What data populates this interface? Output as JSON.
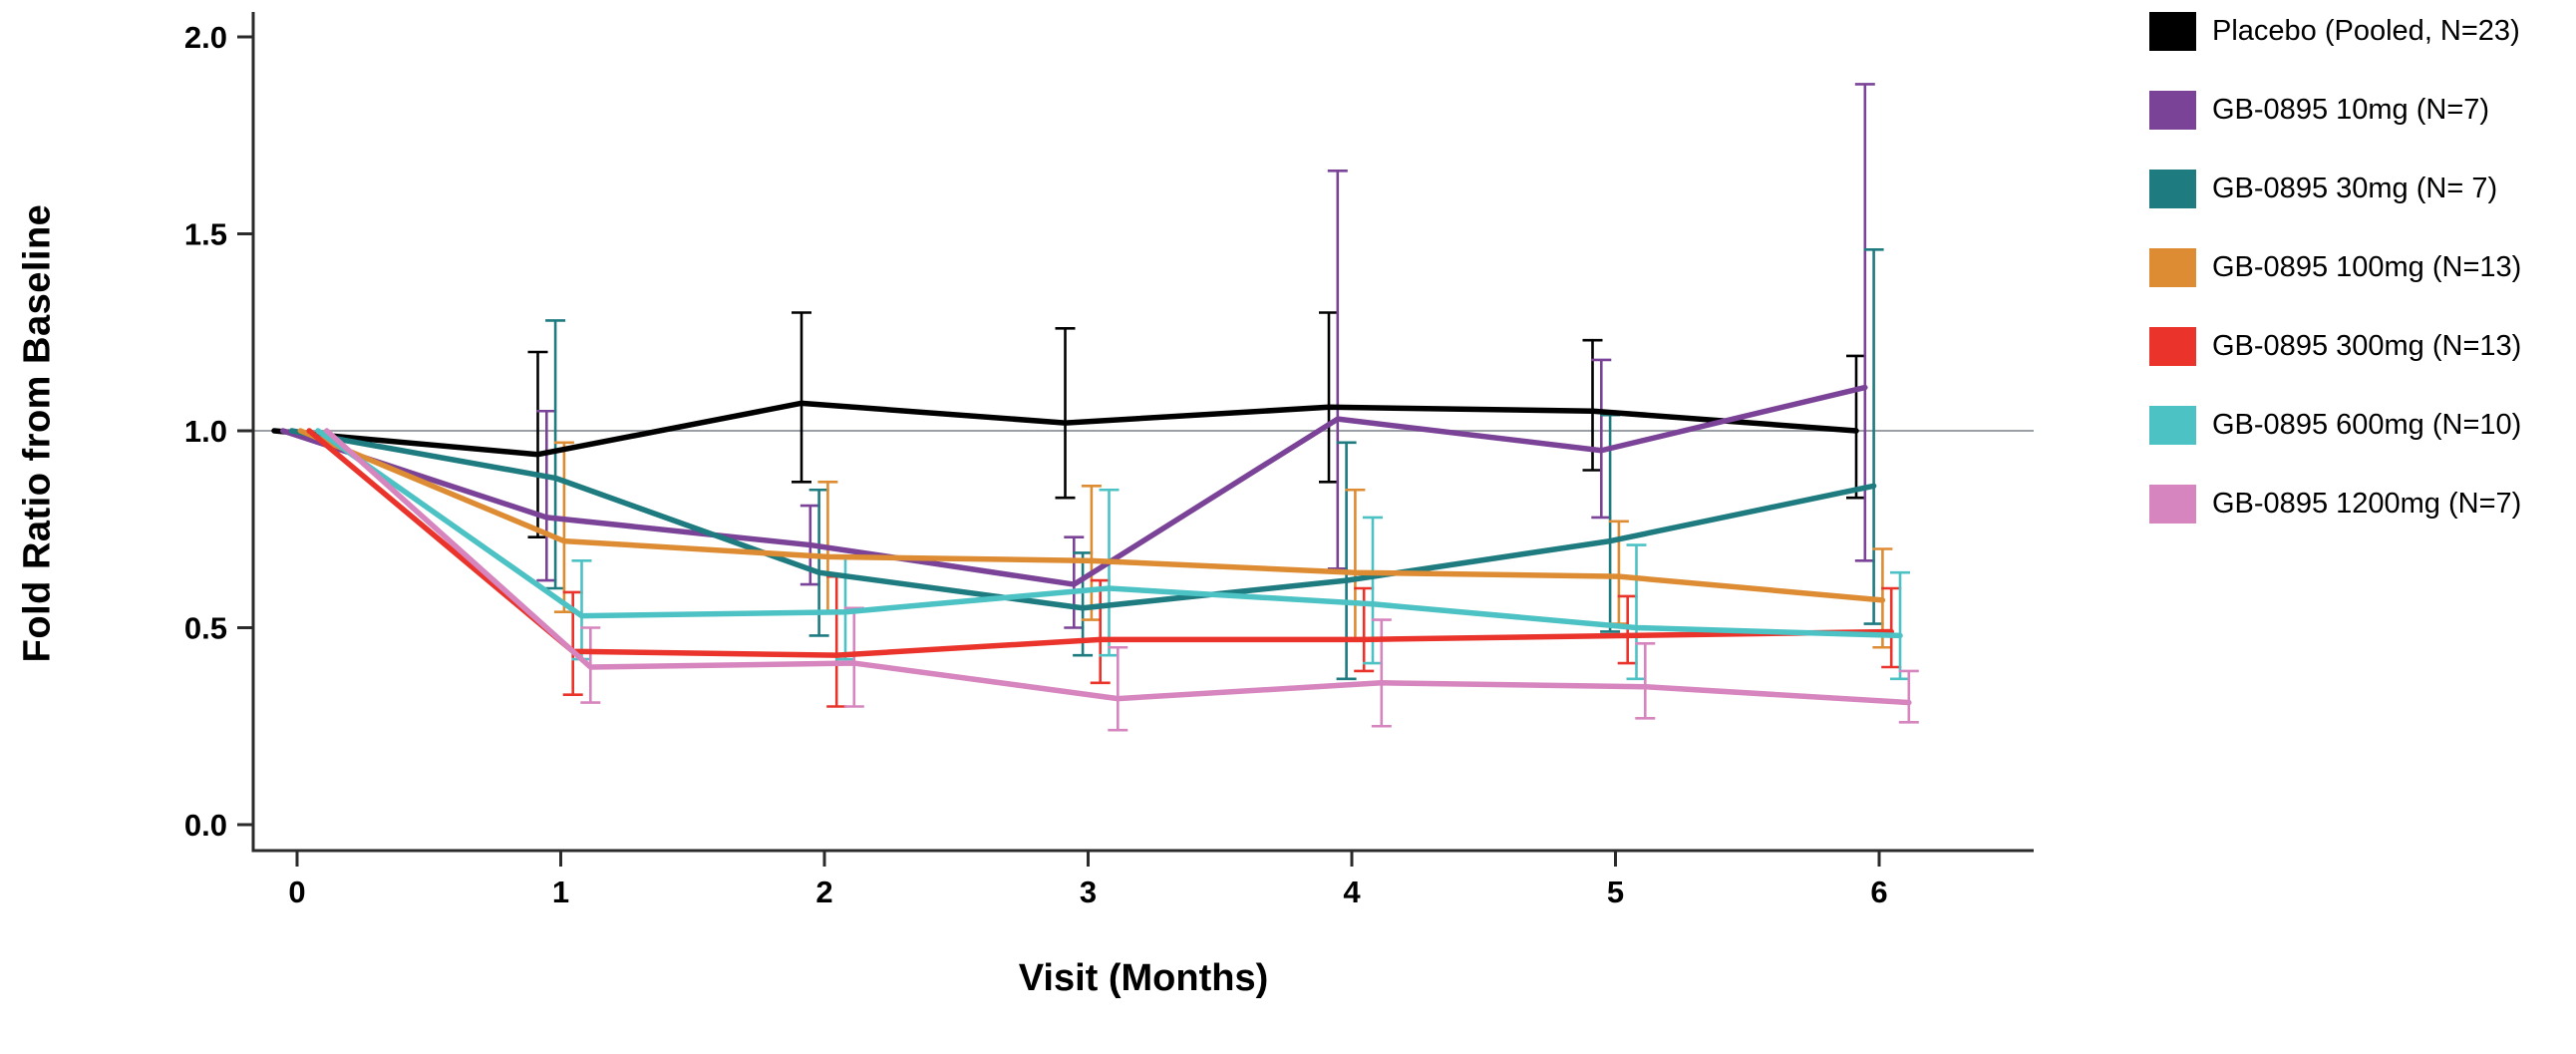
{
  "figure": {
    "ylabel": "Fold Ratio from Baseline",
    "xlabel": "Visit (Months)"
  },
  "colors": {
    "background": "#ffffff",
    "axis": "#2b2b2b",
    "reference_line": "#9aa0a6",
    "tick_text": "#000000"
  },
  "chart_data": {
    "type": "line",
    "title": "",
    "xlabel": "Visit (Months)",
    "ylabel": "Fold Ratio from Baseline",
    "x": [
      0,
      1,
      2,
      3,
      4,
      5,
      6
    ],
    "xlim": [
      -0.17,
      6.6
    ],
    "ylim": [
      -0.07,
      2.05
    ],
    "yticks": [
      {
        "v": 0.0,
        "label": "0.0"
      },
      {
        "v": 0.5,
        "label": "0.5"
      },
      {
        "v": 1.0,
        "label": "1.0"
      },
      {
        "v": 1.5,
        "label": "1.5"
      },
      {
        "v": 2.0,
        "label": "2.0"
      }
    ],
    "xticks": [
      {
        "v": 0,
        "label": "0"
      },
      {
        "v": 1,
        "label": "1"
      },
      {
        "v": 2,
        "label": "2"
      },
      {
        "v": 3,
        "label": "3"
      },
      {
        "v": 4,
        "label": "4"
      },
      {
        "v": 5,
        "label": "5"
      },
      {
        "v": 6,
        "label": "6"
      }
    ],
    "reference_line_y": 1.0,
    "grid": false,
    "error_bars": true,
    "legend_position": "right-outside",
    "series": [
      {
        "name": "Placebo (Pooled, N=23)",
        "color": "#000000",
        "values": [
          1.0,
          0.94,
          1.07,
          1.02,
          1.06,
          1.05,
          1.0
        ],
        "err_low": [
          null,
          0.73,
          0.87,
          0.83,
          0.87,
          0.9,
          0.83
        ],
        "err_high": [
          null,
          1.2,
          1.3,
          1.26,
          1.3,
          1.23,
          1.19
        ]
      },
      {
        "name": "GB-0895 10mg (N=7)",
        "color": "#7B4397",
        "values": [
          1.0,
          0.78,
          0.71,
          0.61,
          1.03,
          0.95,
          1.11
        ],
        "err_low": [
          null,
          0.62,
          0.61,
          0.5,
          0.65,
          0.78,
          0.67
        ],
        "err_high": [
          null,
          1.05,
          0.81,
          0.73,
          1.66,
          1.18,
          1.88
        ]
      },
      {
        "name": "GB-0895 30mg (N= 7)",
        "color": "#1E7B80",
        "values": [
          1.0,
          0.88,
          0.64,
          0.55,
          0.62,
          0.72,
          0.86
        ],
        "err_low": [
          null,
          0.6,
          0.48,
          0.43,
          0.37,
          0.49,
          0.51
        ],
        "err_high": [
          null,
          1.28,
          0.85,
          0.69,
          0.97,
          1.04,
          1.46
        ]
      },
      {
        "name": "GB-0895 100mg (N=13)",
        "color": "#DD8C33",
        "values": [
          1.0,
          0.72,
          0.68,
          0.67,
          0.64,
          0.63,
          0.57
        ],
        "err_low": [
          null,
          0.54,
          0.54,
          0.52,
          0.47,
          0.51,
          0.45
        ],
        "err_high": [
          null,
          0.97,
          0.87,
          0.86,
          0.85,
          0.77,
          0.7
        ]
      },
      {
        "name": "GB-0895 300mg (N=13)",
        "color": "#E9332B",
        "values": [
          1.0,
          0.44,
          0.43,
          0.47,
          0.47,
          0.48,
          0.49
        ],
        "err_low": [
          null,
          0.33,
          0.3,
          0.36,
          0.39,
          0.41,
          0.4
        ],
        "err_high": [
          null,
          0.59,
          0.63,
          0.62,
          0.6,
          0.58,
          0.6
        ]
      },
      {
        "name": "GB-0895 600mg (N=10)",
        "color": "#4CC2C4",
        "values": [
          1.0,
          0.53,
          0.54,
          0.6,
          0.56,
          0.5,
          0.48
        ],
        "err_low": [
          null,
          0.42,
          0.42,
          0.43,
          0.41,
          0.37,
          0.37
        ],
        "err_high": [
          null,
          0.67,
          0.68,
          0.85,
          0.78,
          0.71,
          0.64
        ]
      },
      {
        "name": "GB-0895 1200mg (N=7)",
        "color": "#D685BE",
        "values": [
          1.0,
          0.4,
          0.41,
          0.32,
          0.36,
          0.35,
          0.31
        ],
        "err_low": [
          null,
          0.31,
          0.3,
          0.24,
          0.25,
          0.27,
          0.26
        ],
        "err_high": [
          null,
          0.5,
          0.55,
          0.45,
          0.52,
          0.46,
          0.39
        ]
      }
    ]
  }
}
